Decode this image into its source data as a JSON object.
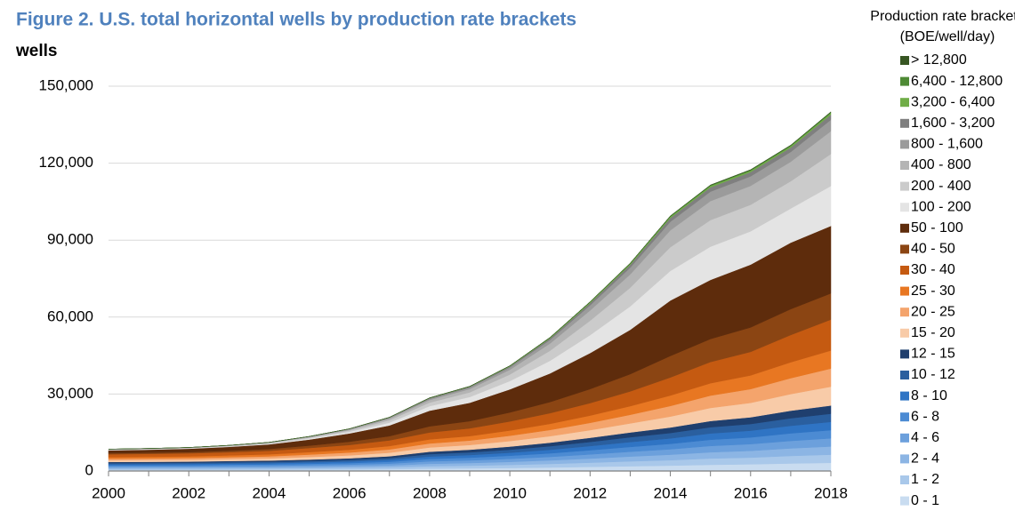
{
  "chart_data": {
    "type": "stacked_area",
    "title": "Figure 2. U.S. total horizontal wells by production rate brackets",
    "y_axis_label": "wells",
    "legend_title": "Production rate brackets",
    "legend_subtitle": "(BOE/well/day)",
    "legend_position": "right",
    "grid": true,
    "x": [
      2000,
      2001,
      2002,
      2003,
      2004,
      2005,
      2006,
      2007,
      2008,
      2009,
      2010,
      2011,
      2012,
      2013,
      2014,
      2015,
      2016,
      2017,
      2018
    ],
    "xlim": [
      2000,
      2018
    ],
    "xticks": [
      2000,
      2002,
      2004,
      2006,
      2008,
      2010,
      2012,
      2014,
      2016,
      2018
    ],
    "ylim": [
      0,
      150000
    ],
    "yticks": [
      {
        "value": 0,
        "label": "0"
      },
      {
        "value": 30000,
        "label": "30,000"
      },
      {
        "value": 60000,
        "label": "60,000"
      },
      {
        "value": 90000,
        "label": "90,000"
      },
      {
        "value": 120000,
        "label": "120,000"
      },
      {
        "value": 150000,
        "label": "150,000"
      }
    ],
    "series": [
      {
        "name": "0 - 1",
        "color": "#c9dcf0",
        "values": [
          440,
          450,
          460,
          490,
          510,
          560,
          620,
          720,
          940,
          1040,
          1190,
          1380,
          1620,
          1880,
          2120,
          2440,
          2620,
          2940,
          3190
        ]
      },
      {
        "name": "1 - 2",
        "color": "#a9c8ea",
        "values": [
          440,
          450,
          460,
          490,
          510,
          560,
          620,
          720,
          940,
          1040,
          1190,
          1380,
          1620,
          1880,
          2120,
          2440,
          2620,
          2940,
          3190
        ]
      },
      {
        "name": "2 - 4",
        "color": "#8cb5e4",
        "values": [
          440,
          450,
          460,
          490,
          510,
          560,
          620,
          720,
          940,
          1040,
          1190,
          1380,
          1620,
          1880,
          2120,
          2440,
          2620,
          2940,
          3190
        ]
      },
      {
        "name": "4 - 6",
        "color": "#6ca0dc",
        "values": [
          440,
          450,
          460,
          490,
          510,
          560,
          620,
          720,
          940,
          1040,
          1190,
          1380,
          1620,
          1880,
          2120,
          2440,
          2620,
          2940,
          3190
        ]
      },
      {
        "name": "6 - 8",
        "color": "#4c8bd3",
        "values": [
          440,
          450,
          460,
          490,
          510,
          560,
          620,
          720,
          940,
          1040,
          1190,
          1380,
          1620,
          1880,
          2120,
          2440,
          2620,
          2940,
          3190
        ]
      },
      {
        "name": "8 - 10",
        "color": "#2f74c4",
        "values": [
          440,
          450,
          460,
          490,
          510,
          560,
          620,
          720,
          940,
          1040,
          1190,
          1380,
          1620,
          1880,
          2120,
          2440,
          2620,
          2940,
          3190
        ]
      },
      {
        "name": "10 - 12",
        "color": "#2a5f9f",
        "values": [
          440,
          450,
          460,
          490,
          510,
          560,
          620,
          720,
          940,
          1040,
          1190,
          1380,
          1620,
          1880,
          2120,
          2440,
          2620,
          2940,
          3190
        ]
      },
      {
        "name": "12 - 15",
        "color": "#1f3f6e",
        "values": [
          440,
          450,
          460,
          490,
          510,
          560,
          620,
          720,
          940,
          1040,
          1190,
          1380,
          1620,
          1880,
          2120,
          2440,
          2620,
          2940,
          3190
        ]
      },
      {
        "name": "15 - 20",
        "color": "#f8cba8",
        "values": [
          660,
          680,
          700,
          750,
          840,
          990,
          1140,
          1360,
          1650,
          1830,
          2160,
          2530,
          2970,
          3520,
          4290,
          5060,
          5610,
          6490,
          7370
        ]
      },
      {
        "name": "20 - 25",
        "color": "#f4a46c",
        "values": [
          630,
          650,
          670,
          710,
          800,
          950,
          1090,
          1300,
          1580,
          1740,
          2060,
          2420,
          2840,
          3360,
          4100,
          4830,
          5360,
          6200,
          7040
        ]
      },
      {
        "name": "25 - 30",
        "color": "#e87722",
        "values": [
          630,
          650,
          670,
          710,
          800,
          950,
          1090,
          1300,
          1580,
          1740,
          2060,
          2420,
          2840,
          3360,
          4100,
          4830,
          5360,
          6200,
          7040
        ]
      },
      {
        "name": "30 - 40",
        "color": "#c55a11",
        "values": [
          1080,
          1120,
          1160,
          1230,
          1360,
          1610,
          1880,
          2240,
          2700,
          2990,
          3530,
          4140,
          4860,
          5760,
          7020,
          8280,
          9180,
          10620,
          12060
        ]
      },
      {
        "name": "40 - 50",
        "color": "#8b4513",
        "values": [
          420,
          450,
          500,
          590,
          700,
          920,
          1260,
          1620,
          2380,
          2800,
          3500,
          4340,
          5460,
          6720,
          8400,
          8960,
          9520,
          10080,
          10220
        ]
      },
      {
        "name": "50 - 100",
        "color": "#5e2c0c",
        "values": [
          1080,
          1150,
          1300,
          1510,
          1800,
          2380,
          3240,
          4180,
          6120,
          7200,
          9000,
          11160,
          14040,
          17280,
          21600,
          23040,
          24480,
          25920,
          26280
        ]
      },
      {
        "name": "100 - 200",
        "color": "#e4e4e4",
        "values": [
          175,
          175,
          175,
          210,
          280,
          420,
          630,
          1120,
          1750,
          2240,
          3220,
          4900,
          7000,
          9100,
          11550,
          12950,
          12950,
          13300,
          15580
        ]
      },
      {
        "name": "200 - 400",
        "color": "#cbcbcb",
        "values": [
          140,
          140,
          140,
          168,
          224,
          336,
          504,
          896,
          1400,
          1792,
          2576,
          3920,
          5600,
          7280,
          9240,
          10360,
          10360,
          10640,
          12460
        ]
      },
      {
        "name": "400 - 800",
        "color": "#b4b4b4",
        "values": [
          100,
          100,
          100,
          120,
          160,
          240,
          360,
          640,
          1000,
          1280,
          1840,
          2800,
          4000,
          5200,
          6600,
          7400,
          7400,
          7600,
          8900
        ]
      },
      {
        "name": "800 - 1,600",
        "color": "#9b9b9b",
        "values": [
          50,
          50,
          50,
          60,
          80,
          120,
          180,
          320,
          500,
          640,
          920,
          1400,
          2000,
          2600,
          3300,
          3700,
          3700,
          3800,
          4450
        ]
      },
      {
        "name": "1,600 - 3,200",
        "color": "#7f7f7f",
        "values": [
          22,
          22,
          22,
          27,
          36,
          54,
          81,
          144,
          225,
          288,
          414,
          630,
          900,
          1170,
          1485,
          1665,
          1665,
          1710,
          2000
        ]
      },
      {
        "name": "3,200 - 6,400",
        "color": "#70ad47",
        "values": [
          8,
          8,
          8,
          9,
          12,
          18,
          27,
          48,
          75,
          96,
          138,
          210,
          300,
          390,
          495,
          555,
          555,
          570,
          670
        ]
      },
      {
        "name": "6,400 - 12,800",
        "color": "#4e8a35",
        "values": [
          4,
          4,
          4,
          4,
          6,
          8,
          13,
          22,
          35,
          45,
          64,
          98,
          140,
          182,
          231,
          259,
          259,
          266,
          310
        ]
      },
      {
        "name": "> 12,800",
        "color": "#375623",
        "values": [
          1,
          1,
          1,
          2,
          2,
          4,
          5,
          10,
          15,
          19,
          28,
          42,
          60,
          78,
          99,
          111,
          111,
          114,
          130
        ]
      }
    ]
  }
}
